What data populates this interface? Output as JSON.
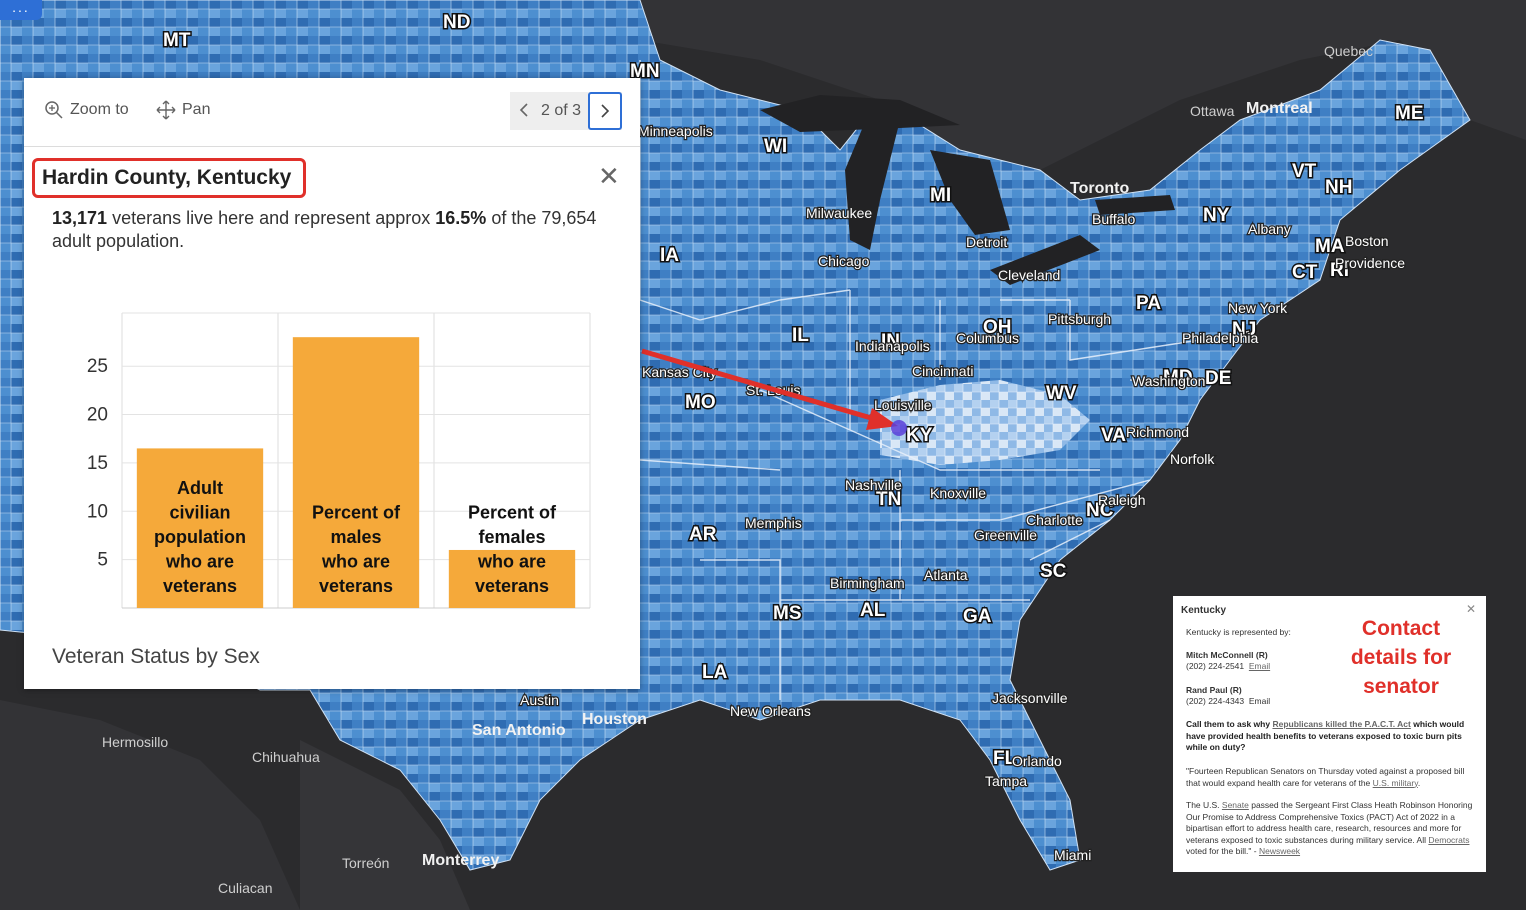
{
  "app": {
    "menu_label": "..."
  },
  "map": {
    "states": [
      "MT",
      "ND",
      "MN",
      "WI",
      "MI",
      "IA",
      "IL",
      "IN",
      "OH",
      "MO",
      "KY",
      "PA",
      "NY",
      "VT",
      "NH",
      "ME",
      "MA",
      "CT",
      "RI",
      "NJ",
      "MD",
      "DE",
      "WV",
      "VA",
      "TN",
      "NC",
      "AR",
      "MS",
      "AL",
      "GA",
      "SC",
      "LA",
      "FL"
    ],
    "cities": [
      "Quebec",
      "Ottawa",
      "Montreal",
      "Toronto",
      "Buffalo",
      "Albany",
      "Boston",
      "Providence",
      "New York",
      "Philadelphia",
      "Washington",
      "Richmond",
      "Norfolk",
      "Pittsburgh",
      "Cleveland",
      "Detroit",
      "Columbus",
      "Cincinnati",
      "Louisville",
      "Indianapolis",
      "Chicago",
      "Milwaukee",
      "Minneapolis",
      "St. Louis",
      "Kansas City",
      "Nashville",
      "Knoxville",
      "Memphis",
      "Raleigh",
      "Charlotte",
      "Greenville",
      "Atlanta",
      "Birmingham",
      "Jacksonville",
      "Orlando",
      "Tampa",
      "Miami",
      "New Orleans",
      "Houston",
      "Austin",
      "San Antonio",
      "Hermosillo",
      "Chihuahua",
      "Torreón",
      "Monterrey",
      "Culiacan"
    ],
    "selected_state": "KY",
    "colors": {
      "background": "#2b2b2d",
      "choropleth_base": "#4d8fd0",
      "choropleth_dark": "#1f5d9e",
      "choropleth_light": "#a8c9ec",
      "annotation_arrow": "#e0302a",
      "selection": "#5b3fd8"
    }
  },
  "popup": {
    "zoom_label": "Zoom to",
    "pan_label": "Pan",
    "zoom_icon": "magnifier-plus-icon",
    "pan_icon": "move-arrows-icon",
    "pager_text": "2 of 3",
    "title": "Hardin County, Kentucky",
    "close_symbol": "✕",
    "desc_veterans": "13,171",
    "desc_mid": " veterans live here and represent approx ",
    "desc_pct": "16.5%",
    "desc_end": " of the 79,654 adult population.",
    "chart_title": "Veteran Status by Sex"
  },
  "chart_data": {
    "type": "bar",
    "categories": [
      "Adult civilian population who are veterans",
      "Percent of males who are veterans",
      "Percent of females who are veterans"
    ],
    "category_lines": [
      [
        "Adult",
        "civilian",
        "population",
        "who are",
        "veterans"
      ],
      [
        "Percent of",
        "males",
        "who are",
        "veterans"
      ],
      [
        "Percent of",
        "females",
        "who are",
        "veterans"
      ]
    ],
    "values": [
      16.5,
      28,
      6
    ],
    "yticks": [
      5,
      10,
      15,
      20,
      25
    ],
    "ylim": [
      0,
      30.5
    ],
    "bar_color": "#f5a93a",
    "title": "Veteran Status by Sex"
  },
  "senator_panel": {
    "state": "Kentucky",
    "represented_by": "Kentucky is represented by:",
    "senators": [
      {
        "name": "Mitch McConnell (R)",
        "phone": "(202) 224-2541",
        "email_label": "Email"
      },
      {
        "name": "Rand Paul (R)",
        "phone": "(202) 224-4343",
        "email_label": "Email"
      }
    ],
    "call_pre": "Call them to ask why ",
    "call_link": "Republicans killed the P.A.C.T. Act",
    "call_post": " which would have provided health benefits to veterans exposed to toxic burn pits while on duty?",
    "quote_pre": "\"Fourteen Republican Senators on Thursday voted against a proposed bill that would expand health care for veterans of the ",
    "quote_link": "U.S. military",
    "quote_post": ".",
    "p3_pre": "The U.S. ",
    "p3_link1": "Senate",
    "p3_mid": " passed the Sergeant First Class Heath Robinson Honoring Our Promise to Address Comprehensive Toxics (PACT) Act of 2022 in a bipartisan effort to address health care, research, resources and more for veterans exposed to toxic substances during military service. All ",
    "p3_link2": "Democrats",
    "p3_post": " voted for the bill.\" - ",
    "p3_source": "Newsweek",
    "close_symbol": "✕",
    "annotation": "Contact details for senator"
  }
}
